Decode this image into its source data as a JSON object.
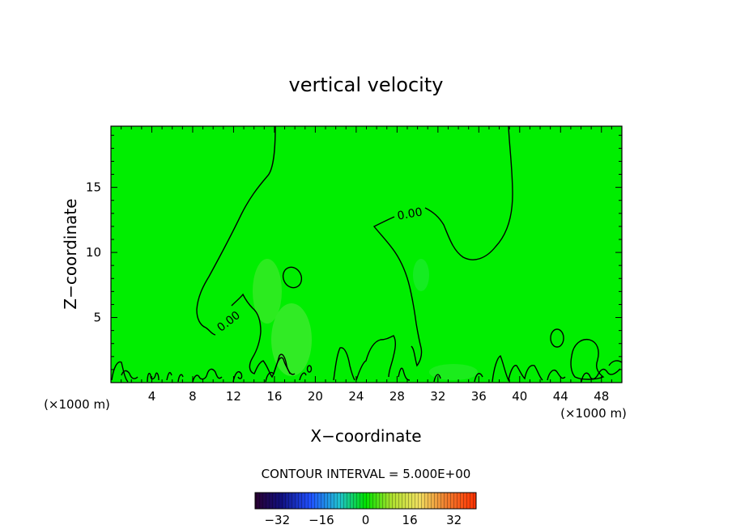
{
  "chart_data": {
    "type": "contour",
    "title": "vertical velocity",
    "xlabel": "X−coordinate",
    "ylabel": "Z−coordinate",
    "x_unit_left": "(×1000 m)",
    "x_unit_right": "(×1000 m)",
    "xlim": [
      0,
      50
    ],
    "ylim": [
      0,
      19.7
    ],
    "x_ticks": [
      4,
      8,
      12,
      16,
      20,
      24,
      28,
      32,
      36,
      40,
      44,
      48
    ],
    "y_ticks": [
      5,
      10,
      15
    ],
    "contour_labels": [
      "0.00",
      "0.00"
    ],
    "contour_interval_text": "CONTOUR INTERVAL = 5.000E+00",
    "colorbar": {
      "min": -40,
      "max": 40,
      "tick_values": [
        -32,
        -16,
        0,
        16,
        32
      ],
      "tick_labels": [
        "−32",
        "−16",
        "0",
        "16",
        "32"
      ]
    },
    "colors": {
      "field": "#00ee00",
      "contour": "#000000"
    }
  }
}
